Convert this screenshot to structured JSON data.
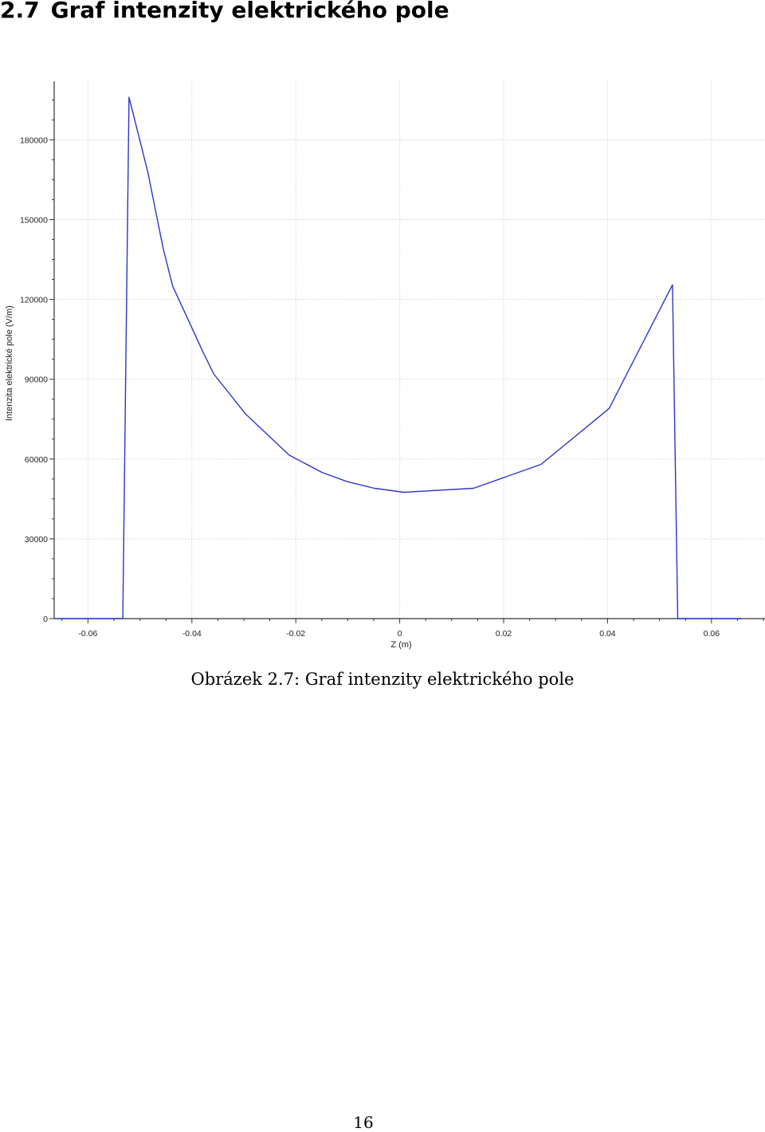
{
  "section": {
    "number": "2.7",
    "title": "Graf intenzity elektrického pole"
  },
  "caption": {
    "prefix": "Obrázek 2.7:",
    "text": "Graf intenzity elektrického pole"
  },
  "page_number": "16",
  "chart_data": {
    "type": "line",
    "title": "",
    "xlabel": "Z (m)",
    "ylabel": "Intenzita elektrické pole (V/m)",
    "xlim": [
      -0.0665,
      0.0703
    ],
    "ylim": [
      0,
      202000
    ],
    "xticks": [
      -0.06,
      -0.04,
      -0.02,
      0,
      0.02,
      0.04,
      0.06
    ],
    "xtick_labels": [
      "-0.06",
      "-0.04",
      "-0.02",
      "0",
      "0.02",
      "0.04",
      "0.06"
    ],
    "yticks": [
      0,
      30000,
      60000,
      90000,
      120000,
      150000,
      180000
    ],
    "ytick_labels": [
      "0",
      "30000",
      "60000",
      "90000",
      "120000",
      "150000",
      "180000"
    ],
    "grid": true,
    "line_color": "#2d35c9",
    "series": [
      {
        "name": "",
        "x": [
          -0.066,
          -0.0533,
          -0.0521,
          -0.0485,
          -0.0455,
          -0.0437,
          -0.0378,
          -0.0358,
          -0.0297,
          -0.0213,
          -0.015,
          -0.0101,
          -0.0049,
          0.0008,
          0.0142,
          0.0272,
          0.0403,
          0.0525,
          0.0535,
          0.0658
        ],
        "y": [
          0,
          0,
          196000,
          168000,
          139000,
          125000,
          100000,
          92000,
          77000,
          61500,
          55000,
          51500,
          49000,
          47500,
          49000,
          58000,
          79000,
          125500,
          0,
          0
        ]
      }
    ]
  }
}
